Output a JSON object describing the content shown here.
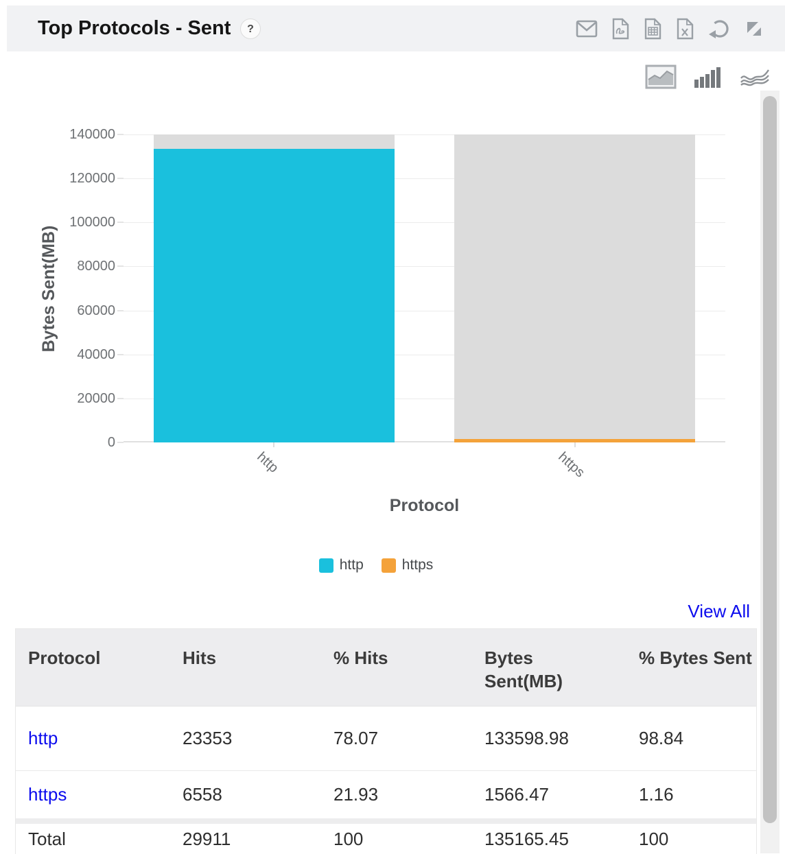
{
  "header": {
    "title": "Top Protocols - Sent",
    "help_label": "?",
    "action_icons": [
      "email-icon",
      "pdf-export-icon",
      "csv-export-icon",
      "excel-export-icon",
      "refresh-icon",
      "resize-icon"
    ]
  },
  "chart_toolbar": {
    "options": [
      "area-chart",
      "bar-chart",
      "line-chart"
    ],
    "selected": "bar-chart"
  },
  "chart_data": {
    "type": "bar",
    "title": "",
    "categories": [
      "http",
      "https"
    ],
    "values": [
      133598.98,
      1566.47
    ],
    "colors": [
      "#1ac0dd",
      "#f4a23a"
    ],
    "track_color": "#dcdcdc",
    "xlabel": "Protocol",
    "ylabel": "Bytes Sent(MB)",
    "ylim": [
      0,
      140000
    ],
    "yticks": [
      0,
      20000,
      40000,
      60000,
      80000,
      100000,
      120000,
      140000
    ],
    "legend": [
      {
        "label": "http",
        "color": "#1ac0dd"
      },
      {
        "label": "https",
        "color": "#f4a23a"
      }
    ],
    "legend_position": "bottom",
    "grid": true
  },
  "view_all_label": "View All",
  "table": {
    "columns": [
      "Protocol",
      "Hits",
      "% Hits",
      "Bytes Sent(MB)",
      "% Bytes Sent"
    ],
    "rows": [
      [
        "http",
        "23353",
        "78.07",
        "133598.98",
        "98.84"
      ],
      [
        "https",
        "6558",
        "21.93",
        "1566.47",
        "1.16"
      ]
    ],
    "total_row": [
      "Total",
      "29911",
      "100",
      "135165.45",
      "100"
    ]
  },
  "colors": {
    "link": "#0c0cee",
    "panel_header_bg": "#f1f2f4",
    "table_header_bg": "#ededef",
    "grid_line": "#ececec"
  }
}
